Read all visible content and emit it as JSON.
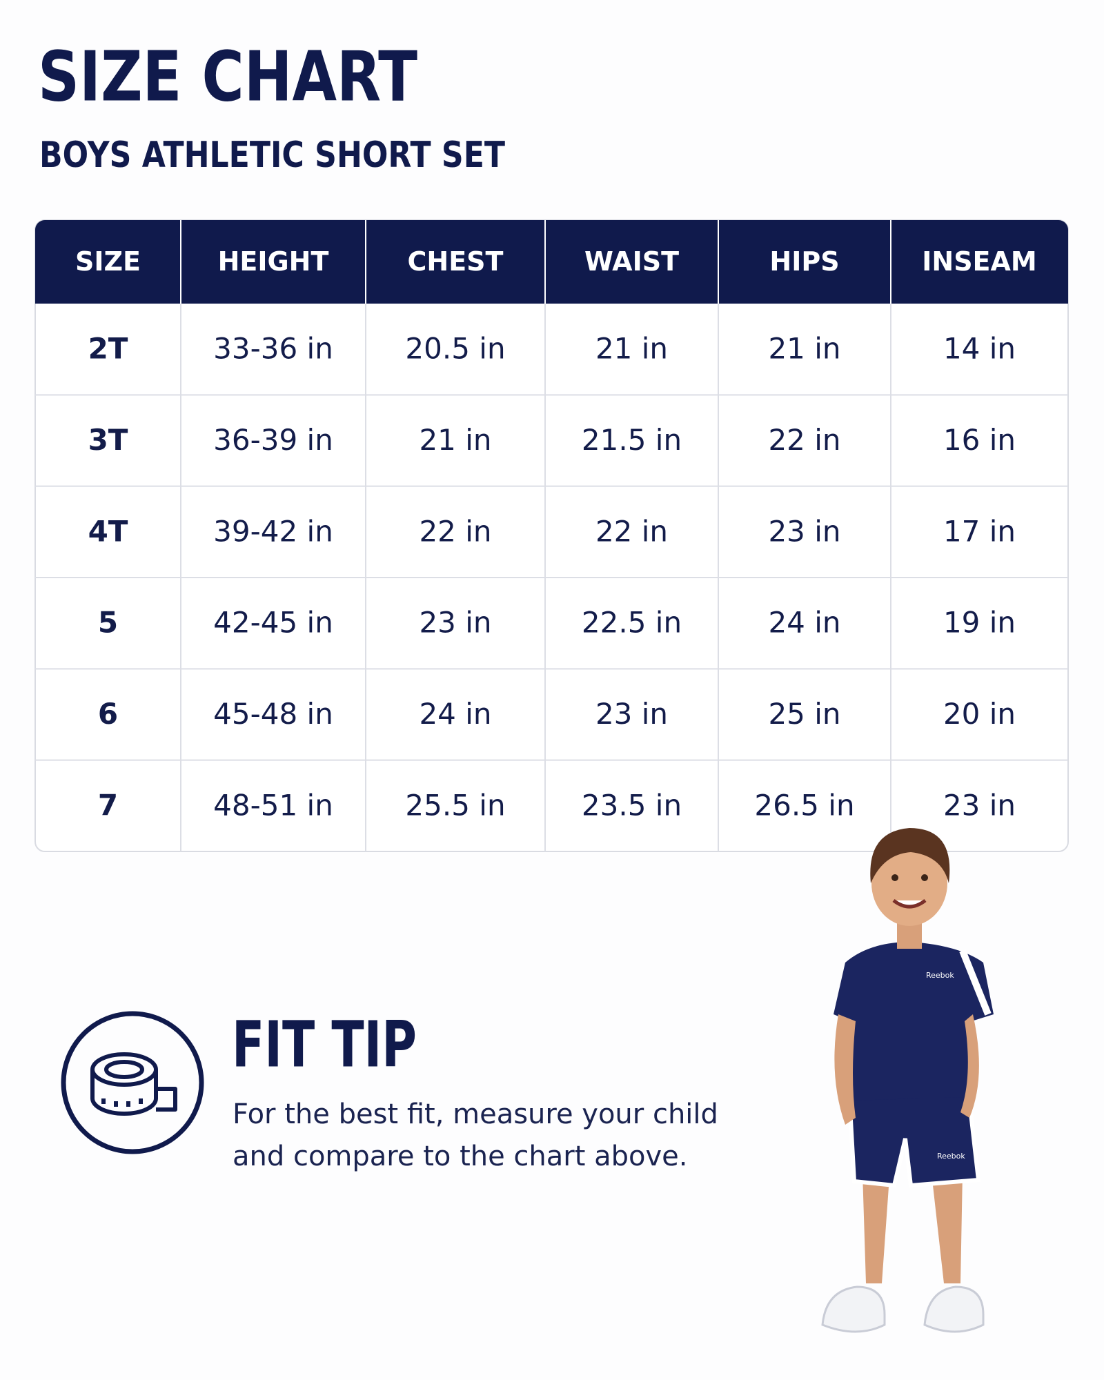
{
  "header": {
    "title": "SIZE CHART",
    "subtitle": "BOYS ATHLETIC SHORT SET"
  },
  "table": {
    "columns": [
      "SIZE",
      "HEIGHT",
      "CHEST",
      "WAIST",
      "HIPS",
      "INSEAM"
    ],
    "rows": [
      [
        "2T",
        "33-36 in",
        "20.5 in",
        "21 in",
        "21 in",
        "14 in"
      ],
      [
        "3T",
        "36-39 in",
        "21 in",
        "21.5 in",
        "22 in",
        "16 in"
      ],
      [
        "4T",
        "39-42 in",
        "22 in",
        "22 in",
        "23 in",
        "17 in"
      ],
      [
        "5",
        "42-45 in",
        "23 in",
        "22.5 in",
        "24 in",
        "19 in"
      ],
      [
        "6",
        "45-48 in",
        "24 in",
        "23 in",
        "25 in",
        "20 in"
      ],
      [
        "7",
        "48-51 in",
        "25.5 in",
        "23.5 in",
        "26.5 in",
        "23 in"
      ]
    ]
  },
  "fit_tip": {
    "title": "FIT TIP",
    "lines": [
      "For the best fit, measure your child",
      "and compare to the chart above."
    ]
  },
  "model": {
    "logo": "Reebok"
  }
}
